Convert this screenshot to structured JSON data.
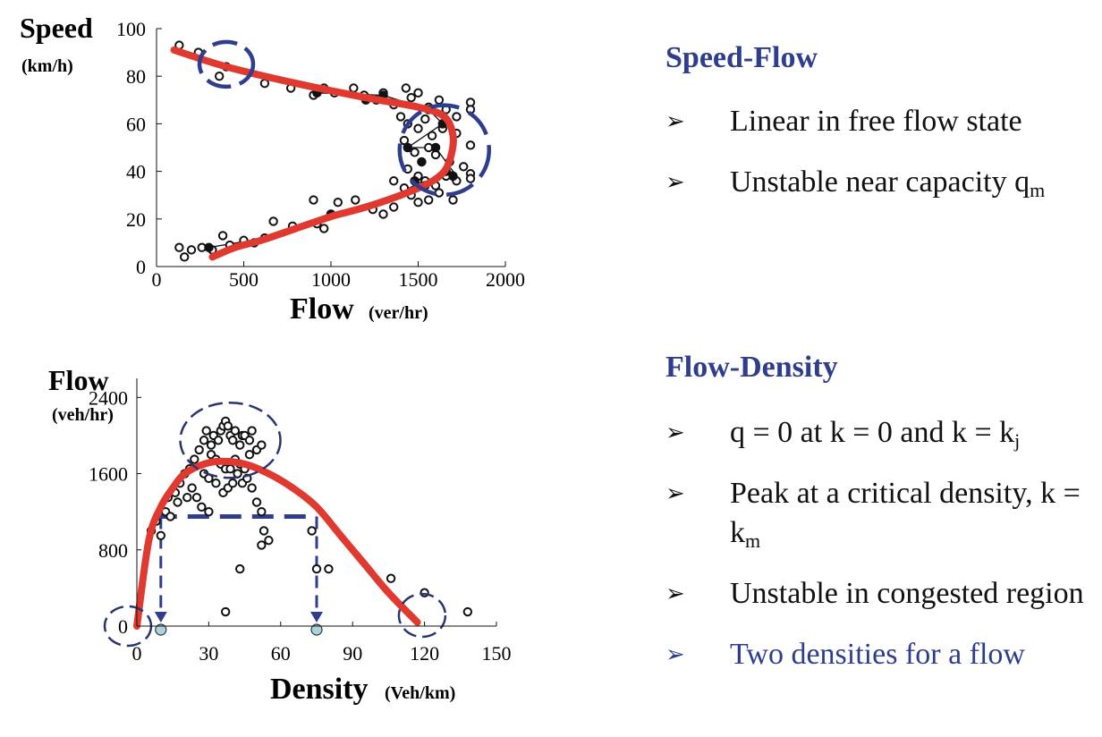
{
  "chart_data": [
    {
      "type": "scatter",
      "xlabel": "Flow",
      "xlabel_unit": "(ver/hr)",
      "ylabel": "Speed",
      "ylabel_unit": "(km/h)",
      "xlim": [
        0,
        2000
      ],
      "ylim": [
        0,
        100
      ],
      "x_ticks": [
        0,
        500,
        1000,
        1500,
        2000
      ],
      "y_ticks": [
        0,
        20,
        40,
        60,
        80,
        100
      ],
      "x_tick_labels": [
        "0",
        "500",
        "1000",
        "1500",
        "2000"
      ],
      "y_tick_labels": [
        "0",
        "20",
        "40",
        "60",
        "80",
        "100"
      ],
      "points": [
        [
          130,
          93
        ],
        [
          240,
          90
        ],
        [
          400,
          84
        ],
        [
          360,
          80
        ],
        [
          620,
          77
        ],
        [
          770,
          75
        ],
        [
          900,
          72
        ],
        [
          960,
          75
        ],
        [
          1020,
          73
        ],
        [
          1130,
          75
        ],
        [
          1190,
          72
        ],
        [
          1260,
          70
        ],
        [
          1300,
          73
        ],
        [
          1360,
          68
        ],
        [
          1430,
          75
        ],
        [
          1460,
          71
        ],
        [
          1500,
          73
        ],
        [
          1560,
          67
        ],
        [
          1620,
          70
        ],
        [
          1660,
          66
        ],
        [
          1720,
          63
        ],
        [
          1800,
          69
        ],
        [
          1800,
          66
        ],
        [
          1400,
          63
        ],
        [
          1440,
          60
        ],
        [
          1500,
          58
        ],
        [
          1540,
          62
        ],
        [
          1580,
          55
        ],
        [
          1640,
          58
        ],
        [
          1720,
          56
        ],
        [
          1800,
          51
        ],
        [
          1420,
          53
        ],
        [
          1480,
          48
        ],
        [
          1560,
          50
        ],
        [
          1600,
          47
        ],
        [
          1680,
          44
        ],
        [
          1760,
          42
        ],
        [
          1800,
          39
        ],
        [
          1440,
          41
        ],
        [
          1500,
          38
        ],
        [
          1540,
          36
        ],
        [
          1600,
          34
        ],
        [
          1660,
          38
        ],
        [
          1720,
          36
        ],
        [
          1800,
          37
        ],
        [
          1360,
          36
        ],
        [
          1420,
          33
        ],
        [
          1460,
          30
        ],
        [
          1500,
          27
        ],
        [
          1560,
          28
        ],
        [
          1620,
          31
        ],
        [
          1700,
          28
        ],
        [
          1240,
          24
        ],
        [
          1300,
          22
        ],
        [
          1360,
          25
        ],
        [
          1140,
          28
        ],
        [
          1000,
          22
        ],
        [
          920,
          18
        ],
        [
          1040,
          27
        ],
        [
          780,
          17
        ],
        [
          670,
          19
        ],
        [
          620,
          12
        ],
        [
          560,
          10
        ],
        [
          500,
          11
        ],
        [
          420,
          9
        ],
        [
          380,
          13
        ],
        [
          320,
          7
        ],
        [
          260,
          8
        ],
        [
          200,
          7
        ],
        [
          160,
          4
        ],
        [
          130,
          8
        ],
        [
          900,
          28
        ],
        [
          960,
          16
        ]
      ],
      "highlight_points": [
        [
          1560,
          66
        ],
        [
          1640,
          60
        ],
        [
          1600,
          50
        ],
        [
          1440,
          50
        ],
        [
          1520,
          44
        ],
        [
          1660,
          40
        ],
        [
          1700,
          38
        ],
        [
          1480,
          36
        ],
        [
          1540,
          34
        ],
        [
          300,
          8
        ],
        [
          1000,
          22
        ],
        [
          1300,
          72
        ],
        [
          1200,
          70
        ],
        [
          920,
          73
        ]
      ],
      "fit_curve": [
        [
          100,
          91
        ],
        [
          400,
          84
        ],
        [
          800,
          77
        ],
        [
          1200,
          71
        ],
        [
          1500,
          67
        ],
        [
          1650,
          63
        ],
        [
          1700,
          55
        ],
        [
          1690,
          47
        ],
        [
          1650,
          40
        ],
        [
          1560,
          35
        ],
        [
          1400,
          30
        ],
        [
          1200,
          25
        ],
        [
          1000,
          21
        ],
        [
          800,
          16
        ],
        [
          600,
          11
        ],
        [
          450,
          8
        ],
        [
          320,
          4
        ]
      ],
      "connector_line": [
        [
          300,
          8
        ],
        [
          700,
          13
        ],
        [
          1000,
          22
        ],
        [
          1300,
          27
        ],
        [
          1500,
          35
        ],
        [
          1700,
          40
        ],
        [
          1600,
          50
        ],
        [
          1440,
          50
        ],
        [
          1640,
          60
        ],
        [
          1560,
          66
        ],
        [
          1300,
          72
        ],
        [
          920,
          73
        ]
      ],
      "circled_regions": [
        "free flow points",
        "near capacity points"
      ]
    },
    {
      "type": "scatter",
      "xlabel": "Density",
      "xlabel_unit": "(Veh/km)",
      "ylabel": "Flow",
      "ylabel_unit": "(veh/hr)",
      "xlim": [
        0,
        150
      ],
      "ylim": [
        0,
        2600
      ],
      "x_ticks": [
        0,
        30,
        60,
        90,
        120,
        150
      ],
      "y_ticks": [
        0,
        800,
        1600,
        2400
      ],
      "x_tick_labels": [
        "0",
        "30",
        "60",
        "90",
        "120",
        "150"
      ],
      "y_tick_labels": [
        "0",
        "800",
        "1600",
        "2400"
      ],
      "points": [
        [
          6,
          1000
        ],
        [
          10,
          950
        ],
        [
          8,
          1100
        ],
        [
          12,
          1200
        ],
        [
          13,
          1350
        ],
        [
          16,
          1400
        ],
        [
          18,
          1500
        ],
        [
          20,
          1600
        ],
        [
          22,
          1650
        ],
        [
          14,
          1150
        ],
        [
          17,
          1300
        ],
        [
          21,
          1350
        ],
        [
          23,
          1450
        ],
        [
          24,
          1750
        ],
        [
          26,
          1850
        ],
        [
          28,
          1950
        ],
        [
          29,
          2050
        ],
        [
          31,
          1900
        ],
        [
          32,
          2000
        ],
        [
          34,
          1950
        ],
        [
          35,
          2050
        ],
        [
          36,
          2100
        ],
        [
          37,
          2150
        ],
        [
          38,
          2100
        ],
        [
          39,
          2000
        ],
        [
          40,
          1950
        ],
        [
          41,
          2050
        ],
        [
          43,
          1900
        ],
        [
          44,
          2000
        ],
        [
          45,
          2000
        ],
        [
          47,
          1950
        ],
        [
          48,
          2050
        ],
        [
          50,
          1850
        ],
        [
          52,
          1900
        ],
        [
          31,
          1800
        ],
        [
          33,
          1750
        ],
        [
          35,
          1700
        ],
        [
          37,
          1650
        ],
        [
          39,
          1650
        ],
        [
          41,
          1750
        ],
        [
          43,
          1700
        ],
        [
          45,
          1650
        ],
        [
          47,
          1800
        ],
        [
          28,
          1600
        ],
        [
          30,
          1550
        ],
        [
          33,
          1500
        ],
        [
          36,
          1400
        ],
        [
          38,
          1450
        ],
        [
          40,
          1500
        ],
        [
          42,
          1600
        ],
        [
          44,
          1500
        ],
        [
          46,
          1550
        ],
        [
          48,
          1450
        ],
        [
          50,
          1300
        ],
        [
          25,
          1350
        ],
        [
          27,
          1250
        ],
        [
          30,
          1200
        ],
        [
          52,
          1200
        ],
        [
          53,
          1000
        ],
        [
          55,
          900
        ],
        [
          52,
          850
        ],
        [
          73,
          1000
        ],
        [
          75,
          600
        ],
        [
          80,
          600
        ],
        [
          43,
          600
        ],
        [
          37,
          150
        ],
        [
          106,
          500
        ],
        [
          120,
          350
        ],
        [
          138,
          150
        ]
      ],
      "fit_curve": [
        [
          0,
          0
        ],
        [
          5,
          900
        ],
        [
          10,
          1250
        ],
        [
          15,
          1450
        ],
        [
          20,
          1600
        ],
        [
          28,
          1700
        ],
        [
          35,
          1730
        ],
        [
          45,
          1700
        ],
        [
          55,
          1600
        ],
        [
          65,
          1450
        ],
        [
          75,
          1250
        ],
        [
          85,
          950
        ],
        [
          95,
          650
        ],
        [
          105,
          350
        ],
        [
          117,
          40
        ]
      ],
      "reference_flow": 1150,
      "reference_densities": [
        10,
        75
      ],
      "circled_regions": [
        "origin",
        "peak cluster",
        "jam density"
      ]
    }
  ],
  "panels": {
    "speed_flow": {
      "title": "Speed-Flow",
      "bullets": [
        {
          "text": "Linear in free flow state",
          "sub": ""
        },
        {
          "text": "Unstable near capacity q",
          "sub": "m"
        }
      ]
    },
    "flow_density": {
      "title": "Flow-Density",
      "bullets": [
        {
          "text": "q = 0 at k = 0 and k = k",
          "sub": "j",
          "highlight": false
        },
        {
          "text": "Peak at a critical density, k = k",
          "sub": "m",
          "highlight": false
        },
        {
          "text": "Unstable in congested region",
          "sub": "",
          "highlight": false
        },
        {
          "text": "Two densities for a flow",
          "sub": "",
          "highlight": true
        }
      ]
    }
  },
  "colors": {
    "fit_curve": "#e0392f",
    "accent": "#2f3d8f",
    "dashed_circle": "#2f3d8f",
    "marker_fill": "#a9d4de",
    "point": "#111111"
  }
}
